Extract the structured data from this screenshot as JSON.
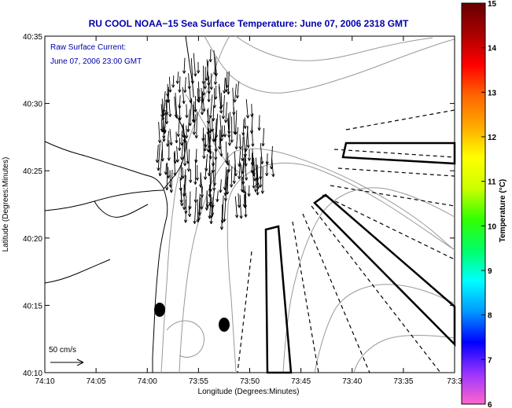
{
  "title": "RU COOL  NOAA−15  Sea Surface Temperature:  June 07, 2006 2318 GMT",
  "legend": {
    "line1": "Raw Surface Current:",
    "line2": "June 07, 2006 23:00 GMT",
    "scale_label": "50 cm/s"
  },
  "axes": {
    "xlabel": "Longitude (Degrees:Minutes)",
    "ylabel": "Latitude (Degrees:Minutes)",
    "x_ticks": [
      "74:10",
      "74:05",
      "74:00",
      "73:55",
      "73:50",
      "73:45",
      "73:40",
      "73:35",
      "73:3"
    ],
    "y_ticks": [
      "40:35",
      "40:30",
      "40:25",
      "40:20",
      "40:15",
      "40:10"
    ]
  },
  "colorbar": {
    "label": "Temperature (°C)",
    "ticks": [
      "15",
      "14",
      "13",
      "12",
      "11",
      "10",
      "9",
      "8",
      "7",
      "6"
    ],
    "min": 6,
    "max": 15,
    "colors": [
      "#ff66cc",
      "#9933ff",
      "#0000ff",
      "#0099ff",
      "#00ffff",
      "#00ff66",
      "#33ff00",
      "#ccff00",
      "#ffff00",
      "#ffaa00",
      "#ff6600",
      "#ff0000",
      "#aa0000",
      "#660000"
    ]
  }
}
